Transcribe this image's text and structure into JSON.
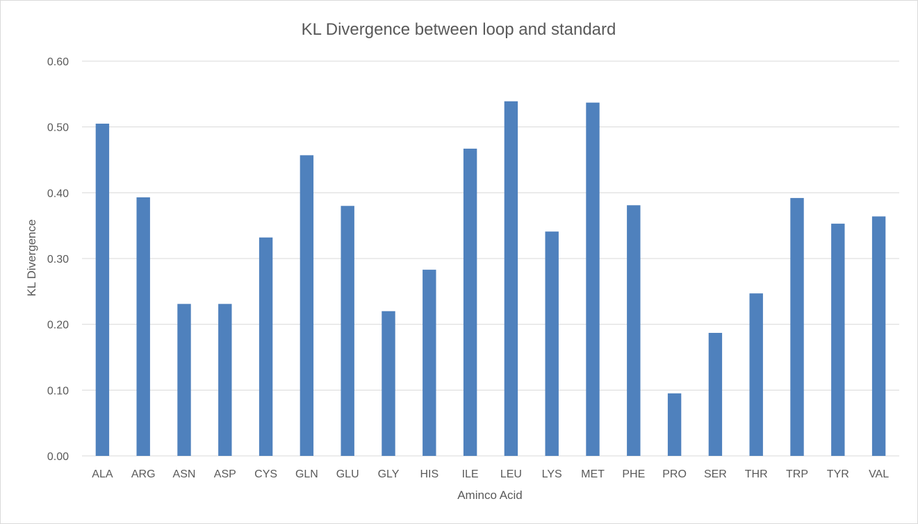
{
  "chart_data": {
    "type": "bar",
    "title": "KL Divergence between loop and standard",
    "xlabel": "Aminco Acid",
    "ylabel": "KL Divergence",
    "categories": [
      "ALA",
      "ARG",
      "ASN",
      "ASP",
      "CYS",
      "GLN",
      "GLU",
      "GLY",
      "HIS",
      "ILE",
      "LEU",
      "LYS",
      "MET",
      "PHE",
      "PRO",
      "SER",
      "THR",
      "TRP",
      "TYR",
      "VAL"
    ],
    "values": [
      0.505,
      0.393,
      0.231,
      0.231,
      0.332,
      0.457,
      0.38,
      0.22,
      0.283,
      0.467,
      0.539,
      0.341,
      0.537,
      0.381,
      0.095,
      0.187,
      0.247,
      0.392,
      0.353,
      0.364
    ],
    "ylim": [
      0,
      0.6
    ],
    "yticks": [
      "0.00",
      "0.10",
      "0.20",
      "0.30",
      "0.40",
      "0.50",
      "0.60"
    ],
    "grid": true,
    "legend": "none",
    "bar_color": "#4f81bd",
    "grid_color": "#d9d9d9"
  }
}
